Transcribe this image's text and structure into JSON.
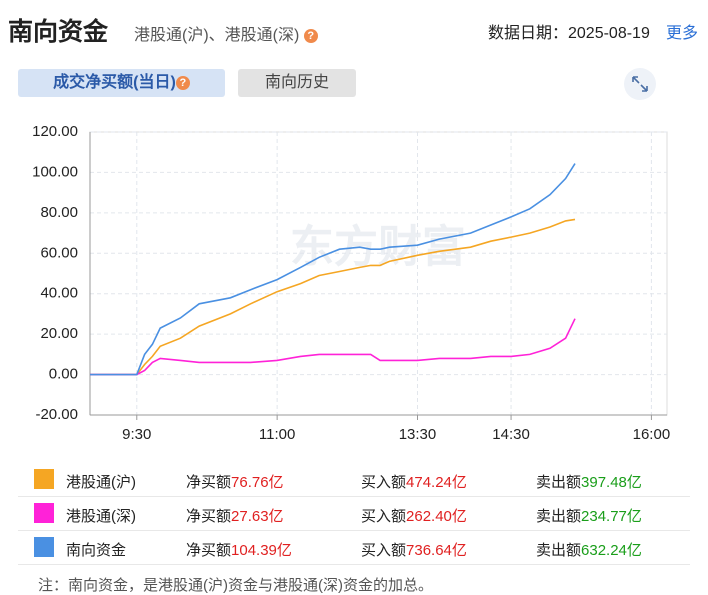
{
  "header": {
    "title": "南向资金",
    "subtitle": "港股通(沪)、港股通(深)",
    "date": "数据日期：2025-08-19",
    "more": "更多"
  },
  "tabs": [
    "成交净买额(当日)",
    "南向历史"
  ],
  "watermark": "东方财富",
  "chart_data": {
    "type": "line",
    "x": [
      0,
      30,
      35,
      40,
      45,
      58,
      70,
      90,
      103,
      120,
      135,
      147,
      160,
      173,
      180,
      186,
      192,
      210,
      224,
      244,
      257,
      270,
      282,
      295,
      305,
      311
    ],
    "series": [
      {
        "name": "港股通(沪)",
        "color": "#f5a623",
        "values": [
          0,
          0,
          5,
          9,
          14,
          18,
          24,
          30,
          35,
          41,
          45,
          49,
          51,
          53,
          54,
          54,
          56,
          59,
          61,
          63,
          66,
          68,
          70,
          73,
          76,
          76.76
        ]
      },
      {
        "name": "港股通(深)",
        "color": "#ff22d8",
        "values": [
          0,
          0,
          2,
          6,
          8,
          7,
          6,
          6,
          6,
          7,
          9,
          10,
          10,
          10,
          10,
          7,
          7,
          7,
          8,
          8,
          9,
          9,
          10,
          13,
          18,
          27.63
        ]
      },
      {
        "name": "南向资金",
        "color": "#4a90e2",
        "values": [
          0,
          0,
          10,
          15,
          23,
          28,
          35,
          38,
          42,
          47,
          53,
          58,
          62,
          63,
          62,
          62,
          63,
          64,
          67,
          70,
          74,
          78,
          82,
          89,
          97,
          104.39
        ]
      }
    ],
    "xlim": [
      0,
      370
    ],
    "xticks": [
      {
        "value": 30,
        "label": "9:30"
      },
      {
        "value": 120,
        "label": "11:00"
      },
      {
        "value": 210,
        "label": "13:30"
      },
      {
        "value": 270,
        "label": "14:30"
      },
      {
        "value": 360,
        "label": "16:00"
      }
    ],
    "ylim": [
      -20,
      120
    ],
    "yticks": [
      {
        "value": -20,
        "label": "-20.00"
      },
      {
        "value": 0,
        "label": "0.00"
      },
      {
        "value": 20,
        "label": "20.00"
      },
      {
        "value": 40,
        "label": "40.00"
      },
      {
        "value": 60,
        "label": "60.00"
      },
      {
        "value": 80,
        "label": "80.00"
      },
      {
        "value": 100,
        "label": "100.00"
      },
      {
        "value": 120,
        "label": "120.00"
      }
    ],
    "grid": true
  },
  "summary": [
    {
      "net_label": "净买额",
      "net": "76.76亿",
      "buy_label": "买入额",
      "buy": "474.24亿",
      "sell_label": "卖出额",
      "sell": "397.48亿"
    },
    {
      "net_label": "净买额",
      "net": "27.63亿",
      "buy_label": "买入额",
      "buy": "262.40亿",
      "sell_label": "卖出额",
      "sell": "234.77亿"
    },
    {
      "net_label": "净买额",
      "net": "104.39亿",
      "buy_label": "买入额",
      "buy": "736.64亿",
      "sell_label": "卖出额",
      "sell": "632.24亿"
    }
  ],
  "note": "注：南向资金，是港股通(沪)资金与港股通(深)资金的加总。"
}
